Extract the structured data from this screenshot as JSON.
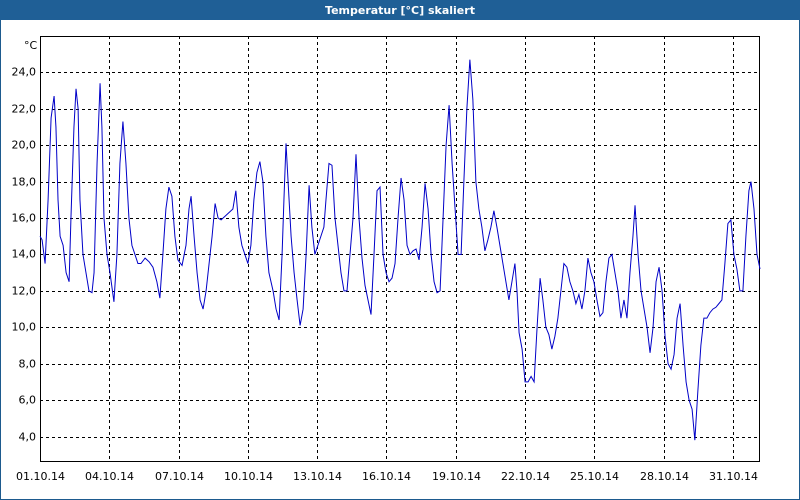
{
  "chart_data": {
    "type": "line",
    "title": "Temperatur [°C] skaliert",
    "y_label": "°C",
    "color": "#0000c8",
    "grid": true,
    "x": [
      0,
      0.09,
      0.22,
      0.35,
      0.48,
      0.61,
      0.69,
      0.78,
      0.87,
      1.0,
      1.13,
      1.26,
      1.34,
      1.47,
      1.56,
      1.65,
      1.73,
      1.86,
      1.99,
      2.12,
      2.25,
      2.34,
      2.47,
      2.6,
      2.68,
      2.77,
      2.9,
      3.03,
      3.2,
      3.33,
      3.46,
      3.59,
      3.72,
      3.85,
      3.98,
      4.11,
      4.24,
      4.37,
      4.55,
      4.72,
      4.89,
      5.06,
      5.19,
      5.32,
      5.45,
      5.58,
      5.71,
      5.84,
      5.97,
      6.15,
      6.32,
      6.45,
      6.54,
      6.67,
      6.8,
      6.93,
      7.06,
      7.19,
      7.32,
      7.45,
      7.58,
      7.71,
      7.84,
      8.01,
      8.18,
      8.35,
      8.48,
      8.61,
      8.74,
      8.87,
      9.0,
      9.13,
      9.26,
      9.39,
      9.52,
      9.65,
      9.78,
      9.91,
      10.09,
      10.22,
      10.35,
      10.48,
      10.56,
      10.65,
      10.74,
      10.87,
      11.0,
      11.13,
      11.26,
      11.39,
      11.52,
      11.65,
      11.77,
      11.9,
      12.03,
      12.16,
      12.29,
      12.38,
      12.51,
      12.64,
      12.77,
      12.9,
      13.03,
      13.16,
      13.29,
      13.42,
      13.55,
      13.68,
      13.81,
      13.94,
      14.07,
      14.2,
      14.33,
      14.46,
      14.59,
      14.72,
      14.85,
      14.98,
      15.11,
      15.24,
      15.37,
      15.5,
      15.63,
      15.76,
      15.89,
      16.02,
      16.15,
      16.28,
      16.41,
      16.54,
      16.67,
      16.8,
      16.93,
      17.06,
      17.19,
      17.32,
      17.45,
      17.58,
      17.71,
      17.84,
      17.97,
      18.1,
      18.23,
      18.35,
      18.48,
      18.61,
      18.74,
      18.87,
      19.0,
      19.13,
      19.26,
      19.39,
      19.52,
      19.65,
      19.78,
      19.91,
      20.04,
      20.17,
      20.3,
      20.43,
      20.56,
      20.65,
      20.74,
      20.87,
      21.0,
      21.13,
      21.26,
      21.39,
      21.52,
      21.65,
      21.77,
      21.9,
      22.03,
      22.16,
      22.29,
      22.42,
      22.55,
      22.68,
      22.81,
      22.94,
      23.07,
      23.2,
      23.33,
      23.46,
      23.59,
      23.72,
      23.85,
      23.98,
      24.11,
      24.24,
      24.37,
      24.5,
      24.63,
      24.76,
      24.89,
      25.02,
      25.15,
      25.28,
      25.41,
      25.54,
      25.67,
      25.76,
      25.89,
      26.02,
      26.15,
      26.28,
      26.41,
      26.54,
      26.67,
      26.8,
      26.93,
      27.06,
      27.19,
      27.32,
      27.45,
      27.58,
      27.71,
      27.84,
      27.97,
      28.1,
      28.23,
      28.35,
      28.48,
      28.61,
      28.74,
      28.87,
      29.0,
      29.13,
      29.26,
      29.39,
      29.52,
      29.65,
      29.78,
      29.91,
      30.04,
      30.17,
      30.3,
      30.43,
      30.56,
      30.69,
      30.78,
      30.91,
      31.04,
      31.17
    ],
    "values": [
      15,
      14.8,
      13.5,
      17,
      21.5,
      22.7,
      21,
      17,
      15,
      14.5,
      13,
      12.5,
      16,
      21,
      23.1,
      22,
      17,
      14,
      13,
      12,
      11.9,
      13,
      19,
      23.4,
      21,
      16,
      14,
      13,
      11.4,
      14,
      19,
      21.3,
      19,
      16,
      14.5,
      14,
      13.5,
      13.5,
      13.8,
      13.6,
      13.3,
      12.5,
      11.6,
      14,
      16.5,
      17.7,
      17.2,
      15,
      13.7,
      13.4,
      14.5,
      16.5,
      17.2,
      15,
      13,
      11.5,
      11,
      12,
      13.5,
      15,
      16.8,
      16,
      15.9,
      16.1,
      16.3,
      16.5,
      17.5,
      15.5,
      14.5,
      14,
      13.5,
      14.5,
      17,
      18.5,
      19.1,
      18,
      15,
      13,
      12,
      11,
      10.4,
      14,
      17,
      20.1,
      18,
      15,
      13,
      11.5,
      10.1,
      11,
      14,
      17.8,
      15.5,
      14,
      14.5,
      15,
      15.5,
      17,
      19,
      18.9,
      16,
      14.5,
      13,
      12,
      12,
      14,
      16,
      19.5,
      16,
      13.8,
      12.3,
      11.5,
      10.7,
      14,
      17.5,
      17.7,
      14,
      13,
      12.5,
      12.7,
      13.5,
      16,
      18.2,
      17,
      14.5,
      14,
      14.2,
      14.3,
      13.7,
      15.5,
      17.9,
      16.5,
      14,
      12.5,
      11.9,
      12,
      16,
      20,
      22.2,
      19,
      16.5,
      14,
      14,
      18,
      22,
      24.7,
      22.5,
      18,
      16.5,
      15.5,
      14.2,
      14.8,
      15.5,
      16.4,
      15.5,
      14.5,
      13.5,
      12.5,
      11.5,
      12.5,
      13.5,
      12,
      9.7,
      8.8,
      7,
      7,
      7.3,
      7,
      10,
      12.7,
      11.5,
      10,
      9.6,
      8.8,
      9.5,
      10.5,
      12,
      13.5,
      13.3,
      12.5,
      12,
      11.3,
      11.8,
      11,
      12,
      13.8,
      13,
      12.5,
      11.5,
      10.6,
      10.8,
      12.5,
      13.8,
      14,
      13,
      12,
      10.5,
      11.5,
      10.5,
      13,
      15,
      16.7,
      14,
      12,
      11,
      10,
      8.6,
      10,
      12.5,
      13.3,
      12,
      9.5,
      8,
      7.7,
      8.5,
      10.5,
      11.3,
      9,
      7,
      6,
      5.5,
      3.8,
      6.5,
      9,
      10.5,
      10.5,
      10.8,
      11,
      11.1,
      11.3,
      11.5,
      13.5,
      15.7,
      15.9,
      14,
      13.2,
      12,
      12,
      15,
      17.5,
      18,
      16.5,
      14,
      13.2
    ],
    "xlim": [
      0,
      31.17
    ],
    "xticks": [
      {
        "value": 0,
        "label": "01.10.14"
      },
      {
        "value": 3,
        "label": "04.10.14"
      },
      {
        "value": 6,
        "label": "07.10.14"
      },
      {
        "value": 9,
        "label": "10.10.14"
      },
      {
        "value": 12,
        "label": "13.10.14"
      },
      {
        "value": 15,
        "label": "16.10.14"
      },
      {
        "value": 18,
        "label": "19.10.14"
      },
      {
        "value": 21,
        "label": "22.10.14"
      },
      {
        "value": 24,
        "label": "25.10.14"
      },
      {
        "value": 27,
        "label": "28.10.14"
      },
      {
        "value": 30,
        "label": "31.10.14"
      }
    ],
    "ylim": [
      2.6,
      26
    ],
    "yticks": [
      {
        "value": 4,
        "label": "4,0"
      },
      {
        "value": 6,
        "label": "6,0"
      },
      {
        "value": 8,
        "label": "8,0"
      },
      {
        "value": 10,
        "label": "10,0"
      },
      {
        "value": 12,
        "label": "12,0"
      },
      {
        "value": 14,
        "label": "14,0"
      },
      {
        "value": 16,
        "label": "16,0"
      },
      {
        "value": 18,
        "label": "18,0"
      },
      {
        "value": 20,
        "label": "20,0"
      },
      {
        "value": 22,
        "label": "22,0"
      },
      {
        "value": 24,
        "label": "24,0"
      }
    ]
  }
}
